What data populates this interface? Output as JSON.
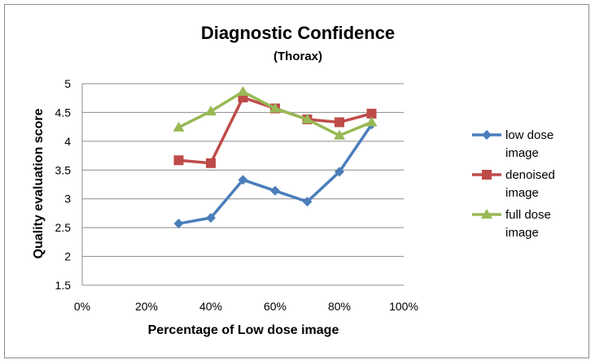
{
  "chart_data": {
    "type": "line",
    "title": "Diagnostic Confidence",
    "subtitle": "(Thorax)",
    "xlabel": "Percentage of Low dose image",
    "ylabel": "Quality evaluation score",
    "xlim": [
      0,
      100
    ],
    "ylim": [
      1.5,
      5
    ],
    "x_ticks": [
      "0%",
      "20%",
      "40%",
      "60%",
      "80%",
      "100%"
    ],
    "y_ticks": [
      "1.5",
      "2",
      "2.5",
      "3",
      "3.5",
      "4",
      "4.5",
      "5"
    ],
    "grid": true,
    "legend_position": "right",
    "x": [
      30,
      40,
      50,
      60,
      70,
      80,
      90
    ],
    "series": [
      {
        "name": "low dose image",
        "legend_lines": [
          "low dose",
          "image"
        ],
        "color": "#4a7ebb",
        "marker": "diamond",
        "values": [
          2.57,
          2.67,
          3.33,
          3.14,
          2.95,
          3.47,
          4.29
        ]
      },
      {
        "name": "denoised image",
        "legend_lines": [
          "denoised",
          "image"
        ],
        "color": "#be4b48",
        "marker": "square",
        "values": [
          3.67,
          3.62,
          4.76,
          4.57,
          4.38,
          4.33,
          4.48
        ]
      },
      {
        "name": "full dose image",
        "legend_lines": [
          "full dose",
          "image"
        ],
        "color": "#98b954",
        "marker": "triangle",
        "values": [
          4.24,
          4.52,
          4.86,
          4.57,
          4.38,
          4.1,
          4.33
        ]
      }
    ]
  }
}
